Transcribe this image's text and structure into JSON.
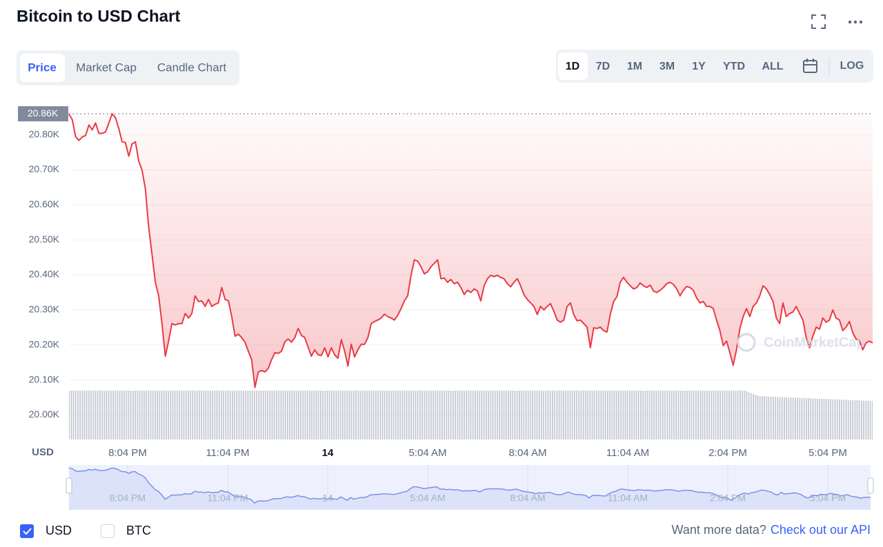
{
  "header": {
    "title": "Bitcoin to USD Chart"
  },
  "tabs": [
    "Price",
    "Market Cap",
    "Candle Chart"
  ],
  "ranges": [
    "1D",
    "7D",
    "1M",
    "3M",
    "1Y",
    "YTD",
    "ALL"
  ],
  "log_button": "LOG",
  "chart_data": {
    "type": "line",
    "color": "#ea3943",
    "y_axis_label": "USD",
    "watermark": "CoinMarketCap",
    "grid": true,
    "x_labels": [
      "8:04 PM",
      "11:04 PM",
      "14",
      "5:04 AM",
      "8:04 AM",
      "11:04 AM",
      "2:04 PM",
      "5:04 PM"
    ],
    "ylim": [
      19930,
      20880
    ],
    "yticks": [
      {
        "value": 20000,
        "label": "20.00K"
      },
      {
        "value": 20100,
        "label": "20.10K"
      },
      {
        "value": 20200,
        "label": "20.20K"
      },
      {
        "value": 20300,
        "label": "20.30K"
      },
      {
        "value": 20400,
        "label": "20.40K"
      },
      {
        "value": 20500,
        "label": "20.50K"
      },
      {
        "value": 20600,
        "label": "20.60K"
      },
      {
        "value": 20700,
        "label": "20.70K"
      },
      {
        "value": 20800,
        "label": "20.80K"
      }
    ],
    "reference_line": {
      "value": 20860,
      "label": "20.86K"
    },
    "values": [
      20859,
      20843,
      20794,
      20784,
      20794,
      20798,
      20828,
      20814,
      20834,
      20804,
      20804,
      20808,
      20834,
      20860,
      20849,
      20818,
      20780,
      20778,
      20739,
      20774,
      20780,
      20725,
      20699,
      20646,
      20537,
      20458,
      20379,
      20340,
      20261,
      20168,
      20211,
      20261,
      20257,
      20261,
      20261,
      20290,
      20277,
      20290,
      20340,
      20324,
      20326,
      20310,
      20330,
      20310,
      20316,
      20320,
      20364,
      20330,
      20326,
      20281,
      20225,
      20231,
      20221,
      20208,
      20182,
      20158,
      20079,
      20123,
      20127,
      20123,
      20133,
      20158,
      20178,
      20176,
      20182,
      20209,
      20217,
      20208,
      20221,
      20247,
      20227,
      20221,
      20194,
      20168,
      20186,
      20172,
      20170,
      20192,
      20166,
      20192,
      20172,
      20162,
      20215,
      20182,
      20140,
      20202,
      20166,
      20186,
      20202,
      20202,
      20221,
      20261,
      20267,
      20271,
      20277,
      20288,
      20281,
      20277,
      20271,
      20285,
      20304,
      20326,
      20340,
      20399,
      20443,
      20439,
      20423,
      20403,
      20409,
      20423,
      20433,
      20443,
      20389,
      20391,
      20379,
      20387,
      20375,
      20379,
      20364,
      20344,
      20356,
      20350,
      20360,
      20354,
      20326,
      20369,
      20389,
      20399,
      20395,
      20399,
      20393,
      20389,
      20375,
      20366,
      20379,
      20389,
      20369,
      20344,
      20330,
      20320,
      20310,
      20287,
      20310,
      20300,
      20310,
      20318,
      20296,
      20271,
      20265,
      20271,
      20310,
      20320,
      20287,
      20269,
      20271,
      20261,
      20251,
      20192,
      20249,
      20247,
      20251,
      20241,
      20237,
      20287,
      20324,
      20338,
      20379,
      20393,
      20379,
      20369,
      20360,
      20364,
      20377,
      20369,
      20364,
      20371,
      20354,
      20350,
      20356,
      20364,
      20375,
      20379,
      20373,
      20360,
      20340,
      20356,
      20367,
      20364,
      20356,
      20334,
      20320,
      20324,
      20310,
      20310,
      20304,
      20271,
      20241,
      20198,
      20211,
      20178,
      20142,
      20186,
      20245,
      20281,
      20304,
      20281,
      20310,
      20320,
      20340,
      20369,
      20360,
      20344,
      20324,
      20277,
      20261,
      20320,
      20281,
      20290,
      20294,
      20310,
      20290,
      20271,
      20221,
      20192,
      20225,
      20251,
      20245,
      20277,
      20265,
      20271,
      20300,
      20277,
      20271,
      20241,
      20251,
      20267,
      20235,
      20217,
      20213,
      20186,
      20206,
      20211,
      20206
    ]
  },
  "footer": {
    "checkboxes": [
      {
        "label": "USD",
        "checked": true
      },
      {
        "label": "BTC",
        "checked": false
      }
    ],
    "api_prompt": "Want more data?",
    "api_link": "Check out our API"
  }
}
